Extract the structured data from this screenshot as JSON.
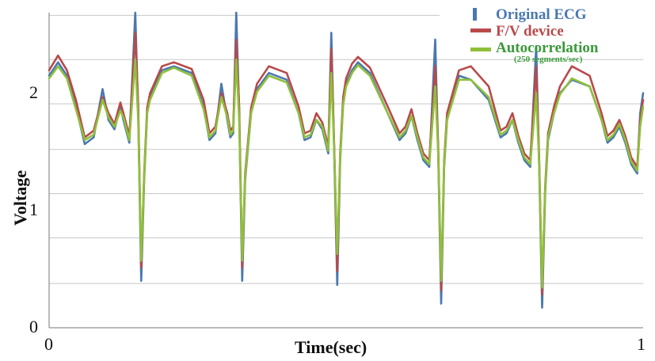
{
  "chart_data": {
    "type": "line",
    "title": "",
    "xlabel": "Time(sec)",
    "ylabel": "Voltage",
    "xlim": [
      0,
      1
    ],
    "ylim": [
      0,
      2.35
    ],
    "x_ticks": [
      "0",
      "1"
    ],
    "y_ticks": [
      "0",
      "1",
      "2"
    ],
    "grid": "horizontal",
    "legend_position": "top-right",
    "legend_note": "(250 segments/sec)",
    "series": [
      {
        "name": "Original ECG",
        "color": "#4a78b0",
        "x": [
          0.0,
          0.015,
          0.03,
          0.045,
          0.06,
          0.075,
          0.09,
          0.1,
          0.11,
          0.12,
          0.125,
          0.135,
          0.145,
          0.15,
          0.155,
          0.16,
          0.165,
          0.17,
          0.18,
          0.19,
          0.21,
          0.24,
          0.26,
          0.27,
          0.28,
          0.29,
          0.3,
          0.305,
          0.31,
          0.315,
          0.32,
          0.325,
          0.33,
          0.34,
          0.35,
          0.37,
          0.4,
          0.42,
          0.43,
          0.44,
          0.45,
          0.46,
          0.47,
          0.475,
          0.48,
          0.485,
          0.49,
          0.495,
          0.5,
          0.51,
          0.52,
          0.54,
          0.57,
          0.59,
          0.6,
          0.61,
          0.62,
          0.63,
          0.64,
          0.65,
          0.655,
          0.66,
          0.665,
          0.67,
          0.68,
          0.69,
          0.71,
          0.74,
          0.76,
          0.77,
          0.78,
          0.79,
          0.8,
          0.81,
          0.82,
          0.825,
          0.83,
          0.835,
          0.84,
          0.85,
          0.86,
          0.88,
          0.91,
          0.93,
          0.94,
          0.95,
          0.96,
          0.97,
          0.98,
          0.99,
          0.995,
          1.0
        ],
        "values": [
          1.88,
          1.98,
          1.88,
          1.65,
          1.37,
          1.42,
          1.78,
          1.55,
          1.48,
          1.65,
          1.55,
          1.38,
          2.35,
          1.6,
          0.35,
          1.1,
          1.6,
          1.72,
          1.82,
          1.92,
          1.95,
          1.9,
          1.65,
          1.4,
          1.45,
          1.82,
          1.55,
          1.42,
          1.45,
          2.35,
          1.6,
          0.35,
          1.1,
          1.6,
          1.78,
          1.9,
          1.85,
          1.6,
          1.4,
          1.42,
          1.55,
          1.48,
          1.3,
          2.2,
          1.3,
          0.32,
          1.25,
          1.68,
          1.82,
          1.92,
          1.98,
          1.9,
          1.6,
          1.4,
          1.45,
          1.58,
          1.4,
          1.25,
          1.2,
          2.15,
          1.3,
          0.18,
          1.2,
          1.55,
          1.72,
          1.88,
          1.85,
          1.7,
          1.42,
          1.45,
          1.55,
          1.38,
          1.25,
          1.2,
          2.1,
          1.2,
          0.15,
          1.0,
          1.4,
          1.6,
          1.75,
          1.85,
          1.8,
          1.55,
          1.38,
          1.42,
          1.5,
          1.38,
          1.22,
          1.15,
          1.6,
          1.75
        ]
      },
      {
        "name": "F/V device",
        "color": "#b84a4a",
        "x": [
          0.0,
          0.015,
          0.03,
          0.045,
          0.06,
          0.075,
          0.09,
          0.1,
          0.11,
          0.12,
          0.125,
          0.135,
          0.145,
          0.15,
          0.155,
          0.16,
          0.165,
          0.17,
          0.18,
          0.19,
          0.21,
          0.24,
          0.26,
          0.27,
          0.28,
          0.29,
          0.3,
          0.305,
          0.31,
          0.315,
          0.32,
          0.325,
          0.33,
          0.34,
          0.35,
          0.37,
          0.4,
          0.42,
          0.43,
          0.44,
          0.45,
          0.46,
          0.47,
          0.475,
          0.48,
          0.485,
          0.49,
          0.495,
          0.5,
          0.51,
          0.52,
          0.54,
          0.57,
          0.59,
          0.6,
          0.61,
          0.62,
          0.63,
          0.64,
          0.65,
          0.655,
          0.66,
          0.665,
          0.67,
          0.68,
          0.69,
          0.71,
          0.74,
          0.76,
          0.77,
          0.78,
          0.79,
          0.8,
          0.81,
          0.82,
          0.825,
          0.83,
          0.835,
          0.84,
          0.85,
          0.86,
          0.88,
          0.91,
          0.93,
          0.94,
          0.95,
          0.96,
          0.97,
          0.98,
          0.99,
          0.995,
          1.0
        ],
        "values": [
          1.92,
          2.03,
          1.92,
          1.7,
          1.42,
          1.47,
          1.72,
          1.6,
          1.52,
          1.68,
          1.6,
          1.43,
          2.2,
          1.65,
          0.45,
          1.15,
          1.64,
          1.75,
          1.85,
          1.95,
          1.98,
          1.93,
          1.7,
          1.45,
          1.5,
          1.75,
          1.6,
          1.47,
          1.5,
          2.15,
          1.65,
          0.45,
          1.15,
          1.64,
          1.82,
          1.95,
          1.9,
          1.65,
          1.45,
          1.47,
          1.6,
          1.53,
          1.35,
          2.08,
          1.35,
          0.42,
          1.3,
          1.72,
          1.86,
          1.97,
          2.02,
          1.94,
          1.65,
          1.45,
          1.5,
          1.63,
          1.45,
          1.3,
          1.25,
          1.95,
          1.35,
          0.28,
          1.25,
          1.6,
          1.76,
          1.92,
          1.95,
          1.8,
          1.47,
          1.5,
          1.6,
          1.43,
          1.3,
          1.25,
          1.95,
          1.25,
          0.25,
          1.05,
          1.45,
          1.65,
          1.8,
          1.95,
          1.88,
          1.6,
          1.43,
          1.47,
          1.55,
          1.43,
          1.27,
          1.2,
          1.55,
          1.7
        ]
      },
      {
        "name": "Autocorrelation",
        "color": "#8fc03a",
        "x": [
          0.0,
          0.015,
          0.03,
          0.045,
          0.06,
          0.075,
          0.09,
          0.1,
          0.11,
          0.12,
          0.125,
          0.135,
          0.145,
          0.15,
          0.155,
          0.16,
          0.165,
          0.17,
          0.18,
          0.19,
          0.21,
          0.24,
          0.26,
          0.27,
          0.28,
          0.29,
          0.3,
          0.305,
          0.31,
          0.315,
          0.32,
          0.325,
          0.33,
          0.34,
          0.35,
          0.37,
          0.4,
          0.42,
          0.43,
          0.44,
          0.45,
          0.46,
          0.47,
          0.475,
          0.48,
          0.485,
          0.49,
          0.495,
          0.5,
          0.51,
          0.52,
          0.54,
          0.57,
          0.59,
          0.6,
          0.61,
          0.62,
          0.63,
          0.64,
          0.65,
          0.655,
          0.66,
          0.665,
          0.67,
          0.68,
          0.69,
          0.71,
          0.74,
          0.76,
          0.77,
          0.78,
          0.79,
          0.8,
          0.81,
          0.82,
          0.825,
          0.83,
          0.835,
          0.84,
          0.85,
          0.86,
          0.88,
          0.91,
          0.93,
          0.94,
          0.95,
          0.96,
          0.97,
          0.98,
          0.99,
          0.995,
          1.0
        ],
        "values": [
          1.86,
          1.95,
          1.86,
          1.63,
          1.4,
          1.44,
          1.7,
          1.57,
          1.5,
          1.62,
          1.57,
          1.4,
          2.0,
          1.55,
          0.5,
          1.12,
          1.6,
          1.7,
          1.8,
          1.9,
          1.94,
          1.88,
          1.63,
          1.42,
          1.47,
          1.72,
          1.57,
          1.44,
          1.47,
          2.0,
          1.55,
          0.5,
          1.12,
          1.6,
          1.76,
          1.88,
          1.83,
          1.6,
          1.42,
          1.44,
          1.55,
          1.5,
          1.32,
          1.9,
          1.32,
          0.55,
          1.27,
          1.66,
          1.8,
          1.9,
          1.96,
          1.88,
          1.6,
          1.42,
          1.47,
          1.58,
          1.42,
          1.27,
          1.22,
          1.8,
          1.3,
          0.35,
          1.22,
          1.55,
          1.7,
          1.85,
          1.85,
          1.72,
          1.44,
          1.47,
          1.55,
          1.4,
          1.27,
          1.22,
          1.75,
          1.22,
          0.3,
          1.02,
          1.42,
          1.6,
          1.74,
          1.86,
          1.8,
          1.55,
          1.4,
          1.44,
          1.52,
          1.4,
          1.24,
          1.17,
          1.5,
          1.65
        ]
      }
    ]
  }
}
